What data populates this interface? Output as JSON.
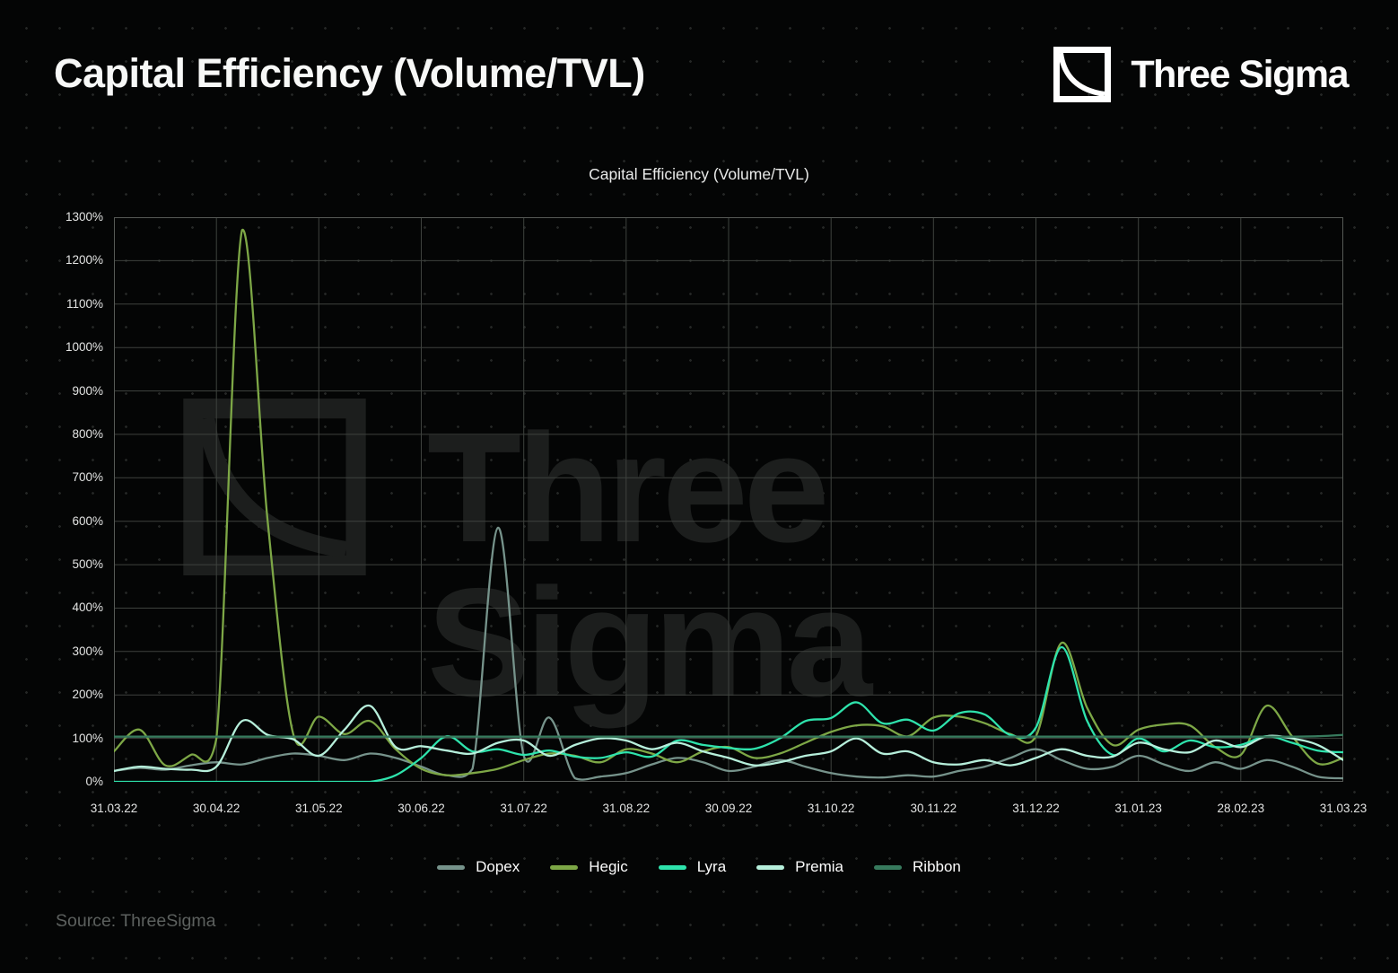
{
  "page": {
    "title": "Capital Efficiency (Volume/TVL)",
    "source": "Source: ThreeSigma"
  },
  "brand": {
    "name": "Three Sigma",
    "watermark_text": "Three Sigma"
  },
  "theme": {
    "background": "#040505",
    "dot_color": "#242625",
    "grid_color": "#3e423e",
    "border_color": "#565a56",
    "watermark_color": "#1c1e1d",
    "text_color": "#f7f8f7",
    "tick_color": "#e3e4e3",
    "source_color": "#5c605e"
  },
  "chart_data": {
    "type": "line",
    "title": "Capital Efficiency (Volume/TVL)",
    "x_range": [
      "31.03.22",
      "31.03.23"
    ],
    "x_tick_labels": [
      "31.03.22",
      "30.04.22",
      "31.05.22",
      "30.06.22",
      "31.07.22",
      "31.08.22",
      "30.09.22",
      "31.10.22",
      "30.11.22",
      "31.12.22",
      "31.01.23",
      "28.02.23",
      "31.03.23"
    ],
    "y_tick_labels": [
      "0%",
      "100%",
      "200%",
      "300%",
      "400%",
      "500%",
      "600%",
      "700%",
      "800%",
      "900%",
      "1000%",
      "1100%",
      "1200%",
      "1300%"
    ],
    "ylim": [
      0,
      1300
    ],
    "y_unit": "%",
    "grid": true,
    "legend_position": "bottom",
    "sampling": "weekly estimates, 4 samples per monthly tick interval (49 points from 31.03.22 to 31.03.23)",
    "series": [
      {
        "name": "Dopex",
        "color": "#76938b",
        "values": [
          25,
          32,
          28,
          38,
          45,
          40,
          55,
          65,
          60,
          50,
          65,
          55,
          35,
          15,
          30,
          585,
          60,
          148,
          8,
          12,
          20,
          40,
          55,
          45,
          25,
          35,
          50,
          35,
          20,
          12,
          10,
          15,
          12,
          25,
          35,
          55,
          75,
          50,
          30,
          35,
          60,
          40,
          25,
          45,
          30,
          50,
          35,
          12,
          8
        ]
      },
      {
        "name": "Hegic",
        "color": "#7da746",
        "values": [
          70,
          120,
          38,
          62,
          100,
          1270,
          600,
          110,
          150,
          110,
          140,
          75,
          30,
          15,
          20,
          30,
          50,
          65,
          60,
          45,
          75,
          65,
          45,
          70,
          80,
          55,
          65,
          90,
          115,
          130,
          128,
          105,
          148,
          150,
          135,
          110,
          105,
          320,
          170,
          85,
          120,
          132,
          130,
          80,
          62,
          175,
          105,
          42,
          55
        ]
      },
      {
        "name": "Lyra",
        "color": "#2ee3ac",
        "values": [
          0,
          0,
          0,
          0,
          0,
          0,
          0,
          0,
          0,
          0,
          0,
          15,
          55,
          105,
          70,
          75,
          62,
          72,
          58,
          55,
          68,
          58,
          95,
          85,
          78,
          76,
          100,
          140,
          147,
          183,
          135,
          143,
          118,
          158,
          155,
          108,
          125,
          310,
          140,
          62,
          100,
          70,
          95,
          80,
          85,
          105,
          90,
          72,
          68
        ]
      },
      {
        "name": "Premia",
        "color": "#b6efdb",
        "values": [
          25,
          35,
          30,
          28,
          35,
          140,
          108,
          98,
          60,
          120,
          175,
          80,
          82,
          72,
          65,
          90,
          95,
          60,
          85,
          100,
          95,
          75,
          90,
          70,
          55,
          38,
          45,
          60,
          70,
          100,
          65,
          70,
          45,
          40,
          50,
          38,
          55,
          75,
          60,
          58,
          90,
          75,
          68,
          95,
          80,
          105,
          100,
          85,
          50
        ]
      },
      {
        "name": "Ribbon",
        "color": "#377a5d",
        "values": [
          104,
          104,
          104,
          104,
          104,
          104,
          104,
          104,
          104,
          104,
          104,
          104,
          104,
          104,
          104,
          104,
          104,
          104,
          104,
          104,
          104,
          104,
          104,
          104,
          104,
          104,
          104,
          104,
          104,
          104,
          104,
          104,
          104,
          104,
          104,
          104,
          104,
          104,
          104,
          104,
          104,
          104,
          104,
          104,
          104,
          104,
          104,
          105,
          108
        ]
      }
    ]
  }
}
